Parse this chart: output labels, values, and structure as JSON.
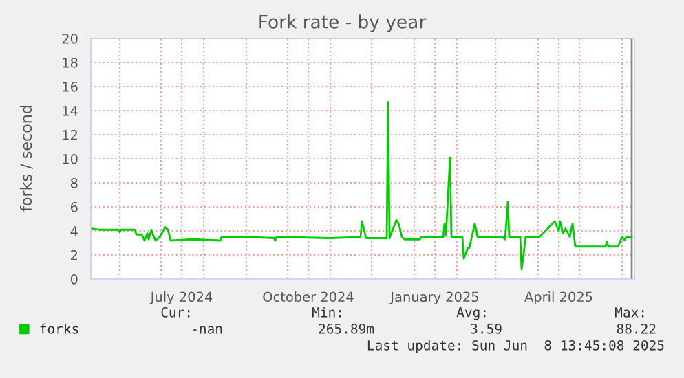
{
  "chart_data": {
    "type": "line",
    "title": "Fork rate - by year",
    "ylabel": "forks / second",
    "x": [
      "2024-05-12",
      "2024-05-17",
      "2024-05-31",
      "2024-06-01",
      "2024-06-02",
      "2024-06-12",
      "2024-06-13",
      "2024-06-17",
      "2024-06-19",
      "2024-06-21",
      "2024-06-22",
      "2024-06-24",
      "2024-06-25",
      "2024-06-27",
      "2024-06-30",
      "2024-07-04",
      "2024-07-06",
      "2024-07-08",
      "2024-07-24",
      "2024-08-13",
      "2024-08-14",
      "2024-09-02",
      "2024-09-21",
      "2024-09-22",
      "2024-09-23",
      "2024-11-01",
      "2024-11-23",
      "2024-11-24",
      "2024-11-27",
      "2024-12-12",
      "2024-12-13",
      "2024-12-14",
      "2024-12-19",
      "2024-12-21",
      "2024-12-23",
      "2024-12-25",
      "2025-01-05",
      "2025-01-06",
      "2025-01-22",
      "2025-01-23",
      "2025-01-24",
      "2025-01-27",
      "2025-01-28",
      "2025-02-05",
      "2025-02-06",
      "2025-02-09",
      "2025-02-10",
      "2025-02-14",
      "2025-02-16",
      "2025-03-06",
      "2025-03-08",
      "2025-03-10",
      "2025-03-11",
      "2025-03-19",
      "2025-03-20",
      "2025-03-23",
      "2025-04-02",
      "2025-04-13",
      "2025-04-16",
      "2025-04-17",
      "2025-04-19",
      "2025-04-21",
      "2025-04-24",
      "2025-04-26",
      "2025-04-28",
      "2025-05-20",
      "2025-05-21",
      "2025-05-22",
      "2025-05-29",
      "2025-06-01",
      "2025-06-03",
      "2025-06-04",
      "2025-06-08"
    ],
    "series": [
      {
        "name": "forks",
        "color": "#00cc00",
        "values": [
          4.2,
          4.1,
          4.1,
          3.9,
          4.1,
          4.1,
          3.7,
          3.7,
          3.2,
          3.8,
          3.3,
          4.1,
          3.7,
          3.2,
          3.5,
          4.3,
          4.1,
          3.2,
          3.3,
          3.2,
          3.5,
          3.5,
          3.4,
          3.2,
          3.5,
          3.4,
          3.5,
          4.8,
          3.4,
          3.4,
          14.7,
          3.4,
          4.9,
          4.5,
          3.5,
          3.3,
          3.3,
          3.5,
          3.5,
          4.6,
          3.6,
          10.1,
          3.5,
          3.5,
          1.7,
          2.6,
          2.6,
          4.6,
          3.5,
          3.5,
          3.3,
          6.4,
          3.5,
          3.5,
          0.8,
          3.5,
          3.5,
          4.8,
          4.0,
          4.8,
          3.8,
          4.2,
          3.5,
          4.6,
          2.7,
          2.7,
          3.1,
          2.7,
          2.7,
          3.5,
          3.2,
          3.5,
          3.5
        ]
      }
    ],
    "xlim": [
      "2024-05-11",
      "2025-06-10"
    ],
    "xticks": [
      {
        "value": "2024-06-01",
        "label": null
      },
      {
        "value": "2024-07-01",
        "label": null
      },
      {
        "value": "2024-07-16",
        "label": "July 2024"
      },
      {
        "value": "2024-08-01",
        "label": null
      },
      {
        "value": "2024-09-01",
        "label": null
      },
      {
        "value": "2024-10-01",
        "label": null
      },
      {
        "value": "2024-10-16",
        "label": "October 2024"
      },
      {
        "value": "2024-11-01",
        "label": null
      },
      {
        "value": "2024-12-01",
        "label": null
      },
      {
        "value": "2025-01-01",
        "label": null
      },
      {
        "value": "2025-01-16",
        "label": "January 2025"
      },
      {
        "value": "2025-02-01",
        "label": null
      },
      {
        "value": "2025-03-01",
        "label": null
      },
      {
        "value": "2025-04-01",
        "label": null
      },
      {
        "value": "2025-04-16",
        "label": "April 2025"
      },
      {
        "value": "2025-05-01",
        "label": null
      },
      {
        "value": "2025-06-01",
        "label": null
      }
    ],
    "ylim": [
      0,
      20
    ],
    "yticks": [
      0,
      2,
      4,
      6,
      8,
      10,
      12,
      14,
      16,
      18,
      20
    ],
    "grid": true,
    "legend": "bottom left",
    "marker": "none",
    "line_style": "solid",
    "ref_lines": [
      {
        "axis": "x",
        "value": "2025-06-08",
        "color": "#888888"
      }
    ],
    "annotations": [
      "Cur:",
      "-nan",
      "Min:",
      "265.89m",
      "Avg:",
      "3.59",
      "Max:",
      "88.22",
      "Last update: Sun Jun  8 13:45:08 2025"
    ]
  }
}
